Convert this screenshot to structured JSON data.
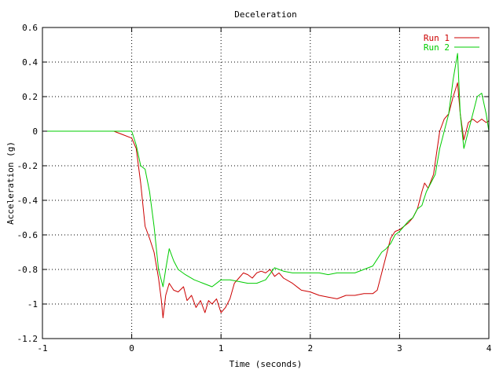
{
  "chart_data": {
    "type": "line",
    "title": "Deceleration",
    "xlabel": "Time (seconds)",
    "ylabel": "Acceleration (g)",
    "xlim": [
      -1,
      4
    ],
    "ylim": [
      -1.2,
      0.6
    ],
    "xticks": [
      -1,
      0,
      1,
      2,
      3,
      4
    ],
    "yticks": [
      -1.2,
      -1,
      -0.8,
      -0.6,
      -0.4,
      -0.2,
      0,
      0.2,
      0.4,
      0.6
    ],
    "x_tick_labels": [
      "-1",
      "0",
      "1",
      "2",
      "3",
      "4"
    ],
    "y_tick_labels": [
      "-1.2",
      "-1",
      "-0.8",
      "-0.6",
      "-0.4",
      "-0.2",
      "0",
      "0.2",
      "0.4",
      "0.6"
    ],
    "grid": true,
    "legend_position": "top-right",
    "series": [
      {
        "name": "Run 1",
        "color": "#cc0000",
        "x": [
          -1.0,
          -0.8,
          -0.6,
          -0.4,
          -0.2,
          -0.1,
          0.0,
          0.05,
          0.1,
          0.15,
          0.2,
          0.25,
          0.3,
          0.33,
          0.35,
          0.38,
          0.42,
          0.47,
          0.52,
          0.58,
          0.62,
          0.67,
          0.72,
          0.77,
          0.82,
          0.86,
          0.9,
          0.95,
          1.0,
          1.05,
          1.1,
          1.15,
          1.2,
          1.25,
          1.3,
          1.35,
          1.4,
          1.45,
          1.5,
          1.55,
          1.6,
          1.65,
          1.7,
          1.8,
          1.9,
          2.0,
          2.1,
          2.2,
          2.3,
          2.4,
          2.5,
          2.6,
          2.7,
          2.75,
          2.8,
          2.85,
          2.9,
          2.95,
          3.0,
          3.05,
          3.1,
          3.15,
          3.2,
          3.25,
          3.28,
          3.32,
          3.38,
          3.45,
          3.5,
          3.55,
          3.6,
          3.65,
          3.68,
          3.72,
          3.77,
          3.82,
          3.87,
          3.92,
          3.97,
          4.0
        ],
        "y": [
          0.0,
          0.0,
          0.0,
          0.0,
          0.0,
          -0.02,
          -0.04,
          -0.1,
          -0.3,
          -0.55,
          -0.62,
          -0.7,
          -0.85,
          -0.97,
          -1.08,
          -0.95,
          -0.88,
          -0.92,
          -0.93,
          -0.9,
          -0.98,
          -0.95,
          -1.02,
          -0.98,
          -1.05,
          -0.98,
          -1.0,
          -0.97,
          -1.05,
          -1.02,
          -0.97,
          -0.88,
          -0.85,
          -0.82,
          -0.83,
          -0.85,
          -0.82,
          -0.81,
          -0.82,
          -0.8,
          -0.84,
          -0.82,
          -0.85,
          -0.88,
          -0.92,
          -0.93,
          -0.95,
          -0.96,
          -0.97,
          -0.95,
          -0.95,
          -0.94,
          -0.94,
          -0.92,
          -0.82,
          -0.72,
          -0.62,
          -0.58,
          -0.57,
          -0.55,
          -0.53,
          -0.5,
          -0.45,
          -0.35,
          -0.3,
          -0.33,
          -0.25,
          0.0,
          0.07,
          0.1,
          0.2,
          0.28,
          0.1,
          -0.05,
          0.05,
          0.07,
          0.05,
          0.07,
          0.05,
          0.06
        ]
      },
      {
        "name": "Run 2",
        "color": "#00cc00",
        "x": [
          -1.0,
          -0.8,
          -0.6,
          -0.4,
          -0.2,
          -0.1,
          0.0,
          0.05,
          0.1,
          0.15,
          0.2,
          0.25,
          0.3,
          0.35,
          0.38,
          0.42,
          0.47,
          0.52,
          0.6,
          0.7,
          0.8,
          0.9,
          1.0,
          1.1,
          1.2,
          1.3,
          1.4,
          1.5,
          1.6,
          1.65,
          1.7,
          1.8,
          1.9,
          2.0,
          2.1,
          2.2,
          2.3,
          2.4,
          2.5,
          2.6,
          2.7,
          2.75,
          2.8,
          2.85,
          2.9,
          2.95,
          3.0,
          3.05,
          3.1,
          3.15,
          3.2,
          3.25,
          3.3,
          3.35,
          3.4,
          3.45,
          3.5,
          3.55,
          3.6,
          3.65,
          3.68,
          3.72,
          3.77,
          3.82,
          3.87,
          3.92,
          3.97,
          4.0
        ],
        "y": [
          0.0,
          0.0,
          0.0,
          0.0,
          0.0,
          0.0,
          0.0,
          -0.08,
          -0.2,
          -0.22,
          -0.35,
          -0.55,
          -0.8,
          -0.9,
          -0.8,
          -0.68,
          -0.75,
          -0.8,
          -0.83,
          -0.86,
          -0.88,
          -0.9,
          -0.86,
          -0.86,
          -0.87,
          -0.88,
          -0.88,
          -0.86,
          -0.79,
          -0.8,
          -0.81,
          -0.82,
          -0.82,
          -0.82,
          -0.82,
          -0.83,
          -0.82,
          -0.82,
          -0.82,
          -0.8,
          -0.78,
          -0.74,
          -0.7,
          -0.68,
          -0.65,
          -0.6,
          -0.58,
          -0.55,
          -0.52,
          -0.5,
          -0.45,
          -0.43,
          -0.35,
          -0.3,
          -0.25,
          -0.1,
          0.0,
          0.1,
          0.3,
          0.45,
          0.1,
          -0.1,
          0.0,
          0.1,
          0.2,
          0.22,
          0.1,
          0.0
        ]
      }
    ]
  }
}
